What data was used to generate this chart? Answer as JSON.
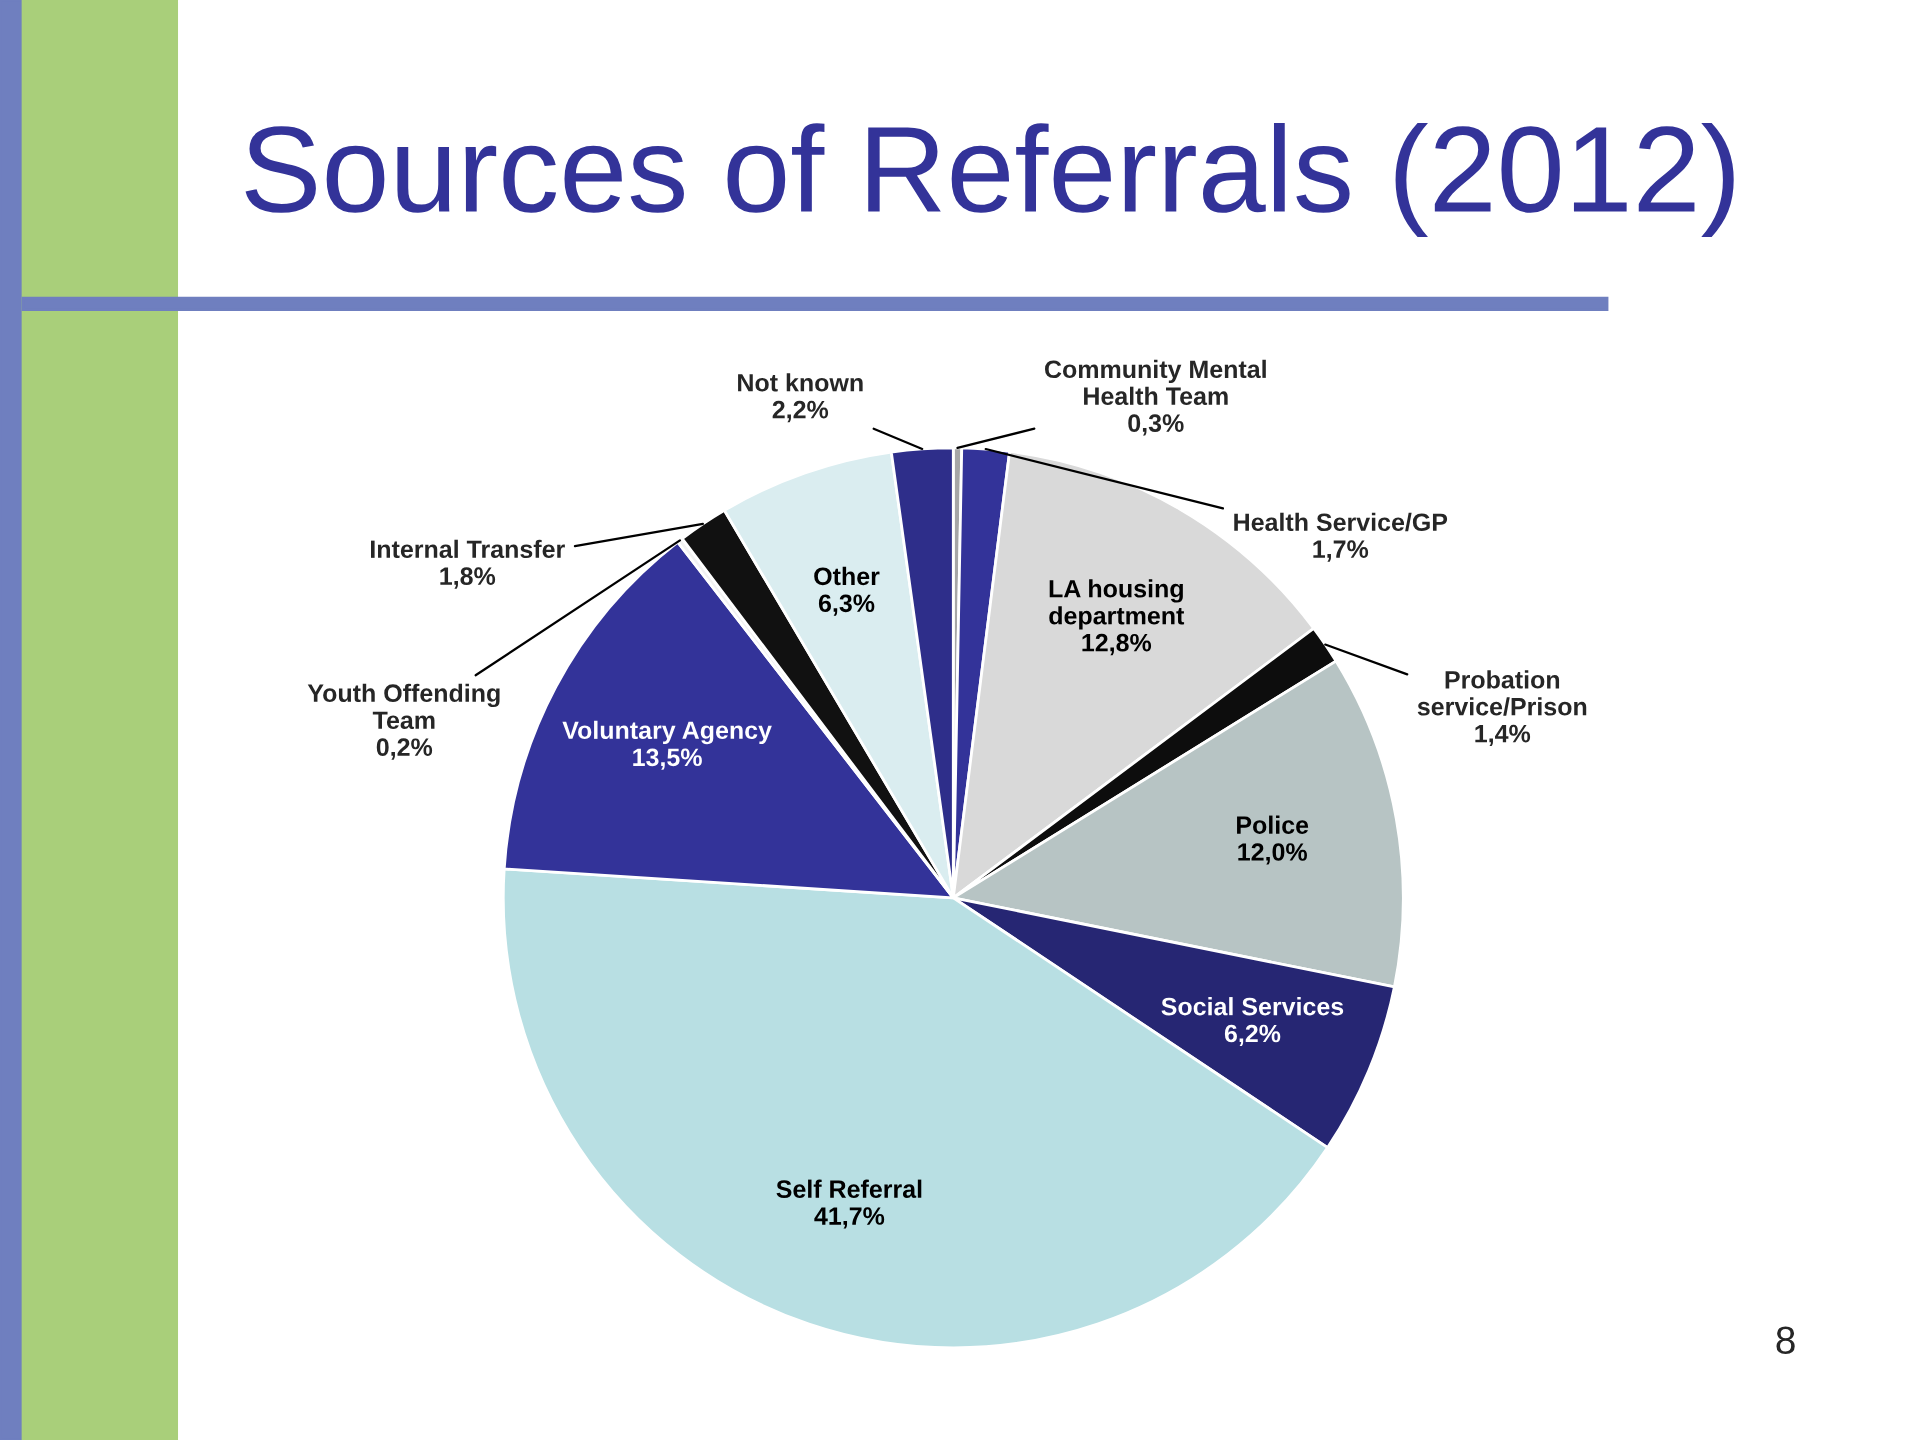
{
  "chart_data": {
    "type": "pie",
    "title": "Sources of Referrals (2012)",
    "categories": [
      "Community Mental\nHealth Team",
      "Health Service/GP",
      "LA housing\ndepartment",
      "Probation\nservice/Prison",
      "Police",
      "Social Services",
      "Self Referral",
      "Voluntary Agency",
      "Youth Offending\nTeam",
      "Internal Transfer",
      "Other",
      "Not known"
    ],
    "values": [
      0.3,
      1.7,
      12.8,
      1.4,
      12.0,
      6.2,
      41.7,
      13.5,
      0.2,
      1.8,
      6.3,
      2.2
    ],
    "value_labels": [
      "0,3%",
      "1,7%",
      "12,8%",
      "1,4%",
      "12,0%",
      "6,2%",
      "41,7%",
      "13,5%",
      "0,2%",
      "1,8%",
      "6,3%",
      "2,2%"
    ],
    "colors": [
      "#a6a6a6",
      "#333399",
      "#d9d9d9",
      "#0d0d0d",
      "#b7c4c4",
      "#262673",
      "#b8dfe3",
      "#333399",
      "#f2f2f2",
      "#111111",
      "#daedf0",
      "#2e2e8a"
    ],
    "annotations": [
      "8"
    ],
    "legend": false
  }
}
